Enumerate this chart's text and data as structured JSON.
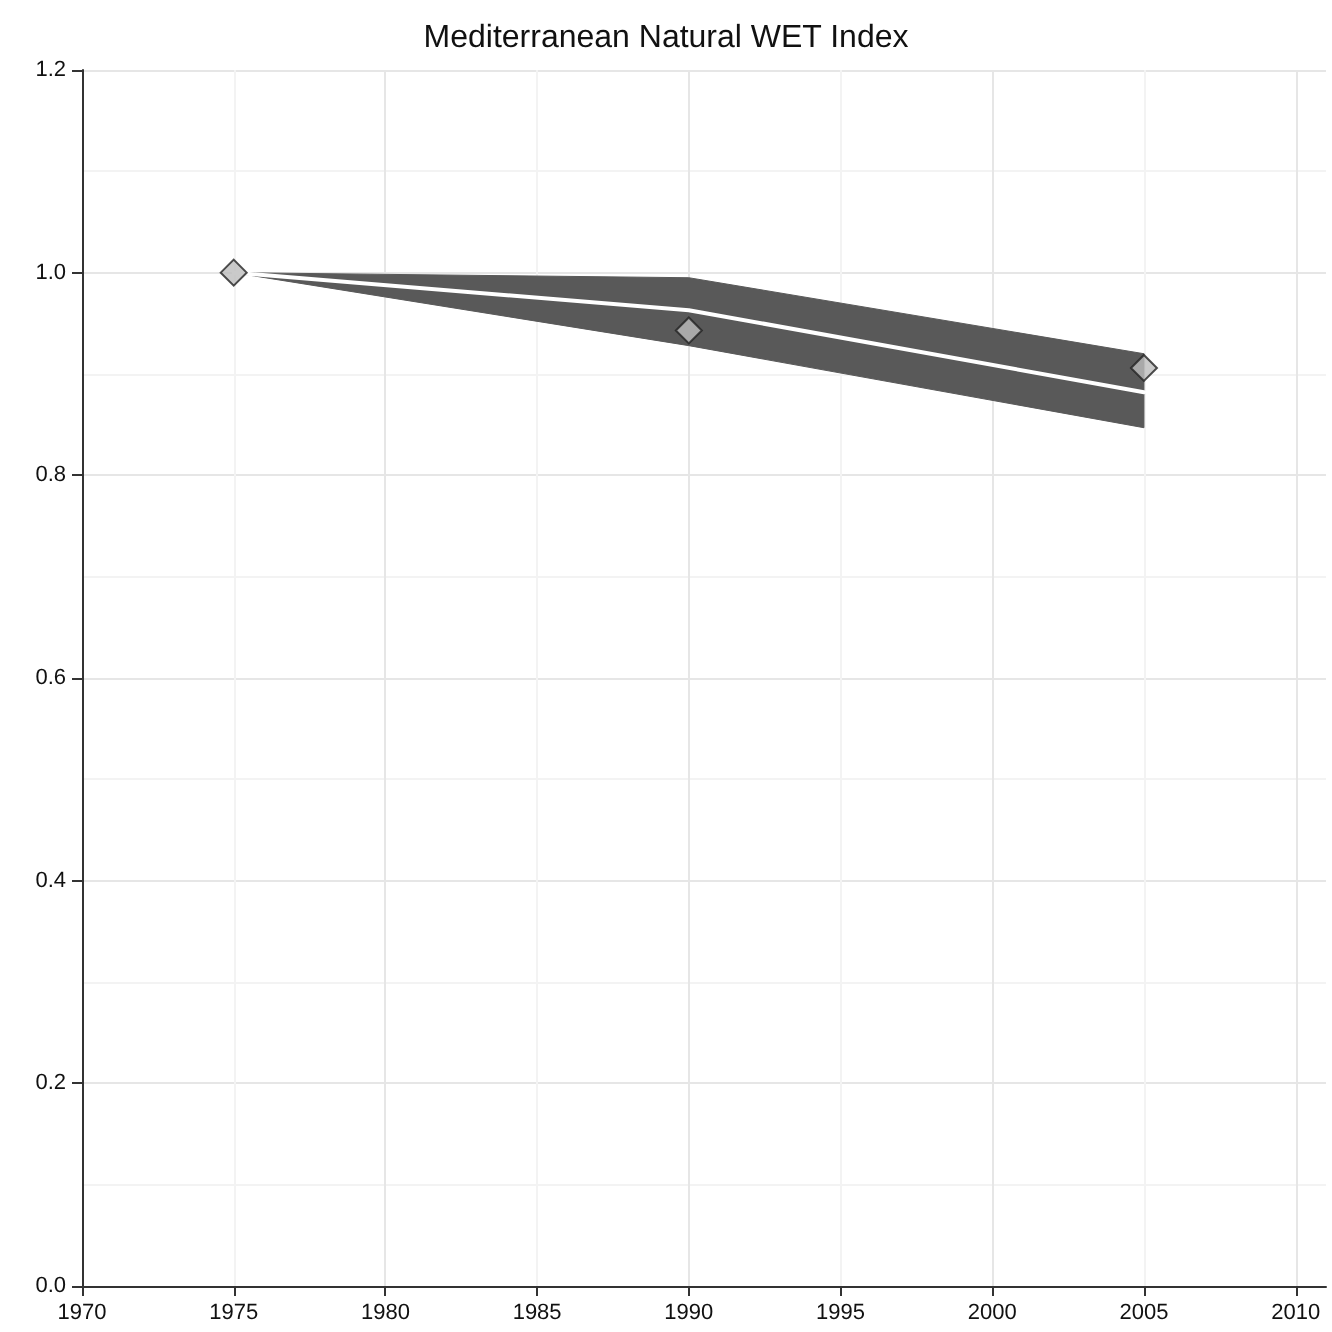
{
  "chart_data": {
    "type": "line",
    "title": "Mediterranean Natural WET Index",
    "xlim": [
      1970,
      2011
    ],
    "xticks": [
      1970,
      1975,
      1980,
      1985,
      1990,
      1995,
      2000,
      2005,
      2010
    ],
    "ylim": [
      0,
      1.2
    ],
    "yticks": [
      {
        "value": 0,
        "label": "0.0"
      },
      {
        "value": 0.2,
        "label": "0.2"
      },
      {
        "value": 0.4,
        "label": "0.4"
      },
      {
        "value": 0.6,
        "label": "0.6"
      },
      {
        "value": 0.8,
        "label": "0.8"
      },
      {
        "value": 1,
        "label": "1.0"
      },
      {
        "value": 1.2,
        "label": "1.2"
      }
    ],
    "grid": true,
    "series": [
      {
        "type": "line",
        "color": "#ffffff",
        "x": [
          1975,
          1990,
          2005
        ],
        "values": [
          1.0,
          0.963,
          0.882
        ],
        "lower": [
          1.0,
          0.928,
          0.847
        ],
        "upper": [
          1.0,
          0.995,
          0.92
        ]
      },
      {
        "type": "scatter",
        "color": "#bdbdbd",
        "marker": "diamond",
        "x": [
          1975,
          1990,
          2005
        ],
        "values": [
          1.0,
          0.943,
          0.906
        ]
      }
    ]
  }
}
